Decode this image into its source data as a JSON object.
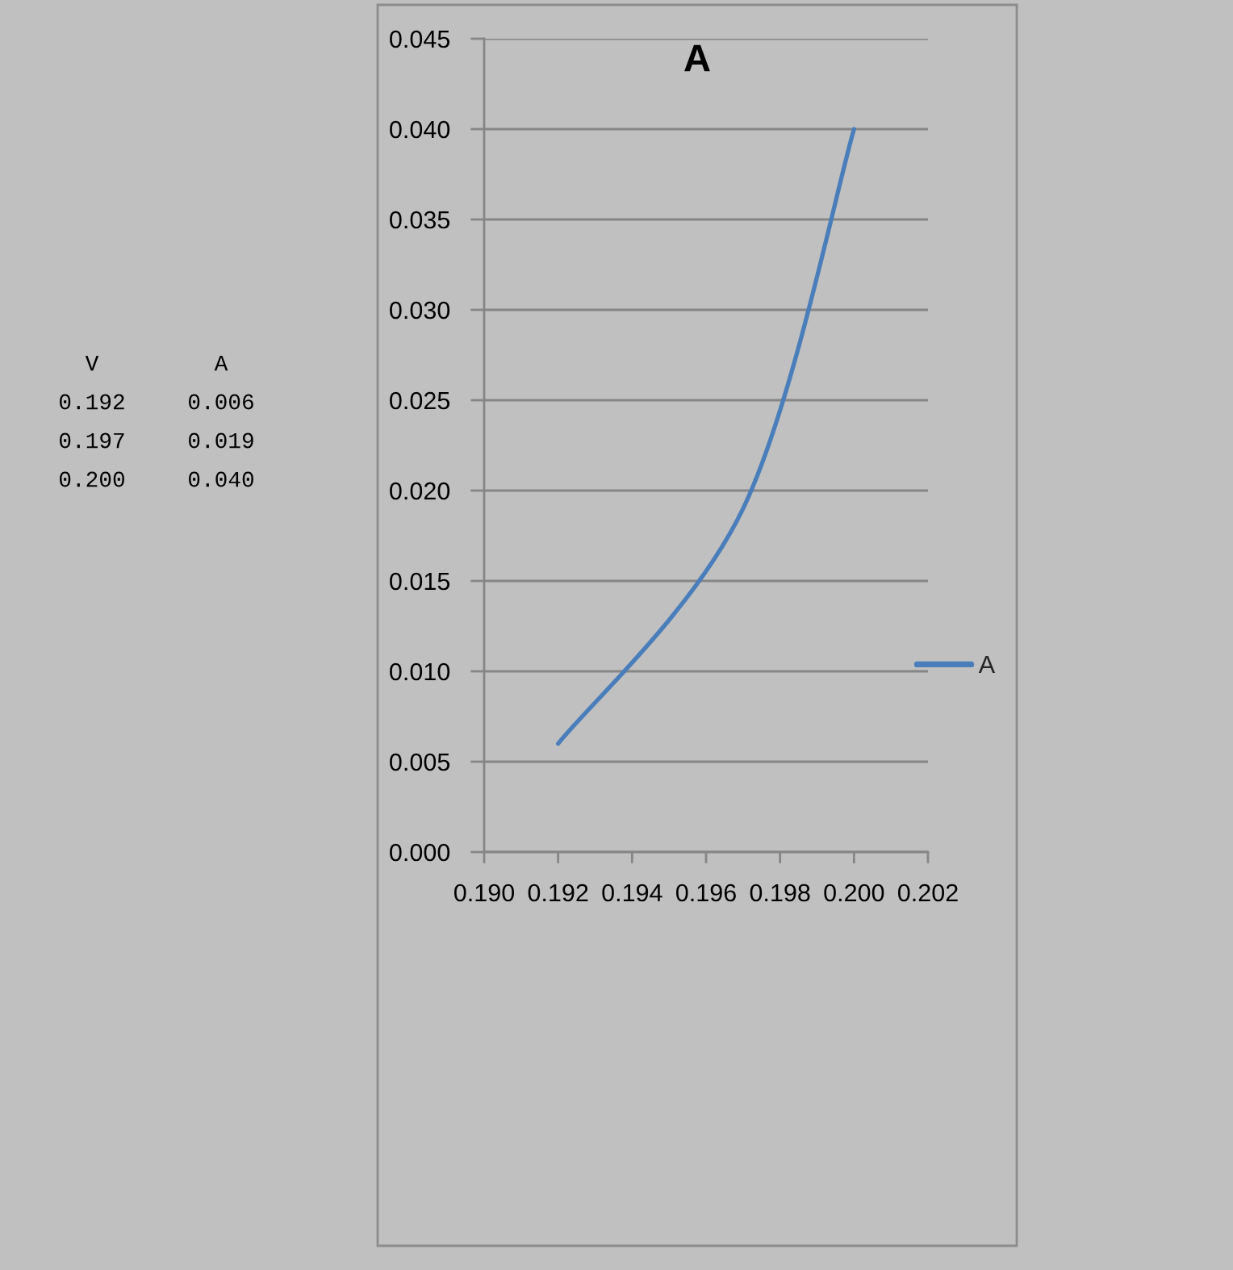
{
  "chart_data": {
    "type": "line",
    "title": "A",
    "x": [
      0.192,
      0.197,
      0.2
    ],
    "series": [
      {
        "name": "A",
        "color": "#4a7ebb",
        "values": [
          0.006,
          0.019,
          0.04
        ]
      }
    ],
    "xlim": [
      0.19,
      0.202
    ],
    "xticks": [
      {
        "value": 0.19,
        "label": "0.190"
      },
      {
        "value": 0.192,
        "label": "0.192"
      },
      {
        "value": 0.194,
        "label": "0.194"
      },
      {
        "value": 0.196,
        "label": "0.196"
      },
      {
        "value": 0.198,
        "label": "0.198"
      },
      {
        "value": 0.2,
        "label": "0.200"
      },
      {
        "value": 0.202,
        "label": "0.202"
      }
    ],
    "ylim": [
      0,
      0.045
    ],
    "yticks": [
      {
        "value": 0,
        "label": "0.000"
      },
      {
        "value": 0.005,
        "label": "0.005"
      },
      {
        "value": 0.01,
        "label": "0.010"
      },
      {
        "value": 0.015,
        "label": "0.015"
      },
      {
        "value": 0.02,
        "label": "0.020"
      },
      {
        "value": 0.025,
        "label": "0.025"
      },
      {
        "value": 0.03,
        "label": "0.030"
      },
      {
        "value": 0.035,
        "label": "0.035"
      },
      {
        "value": 0.04,
        "label": "0.040"
      },
      {
        "value": 0.045,
        "label": "0.045"
      }
    ],
    "grid": "y",
    "legend": "right",
    "line_style": "solid",
    "annotations": [
      "V",
      "A",
      "0.192",
      "0.006",
      "0.197",
      "0.019",
      "0.200",
      "0.040"
    ]
  }
}
